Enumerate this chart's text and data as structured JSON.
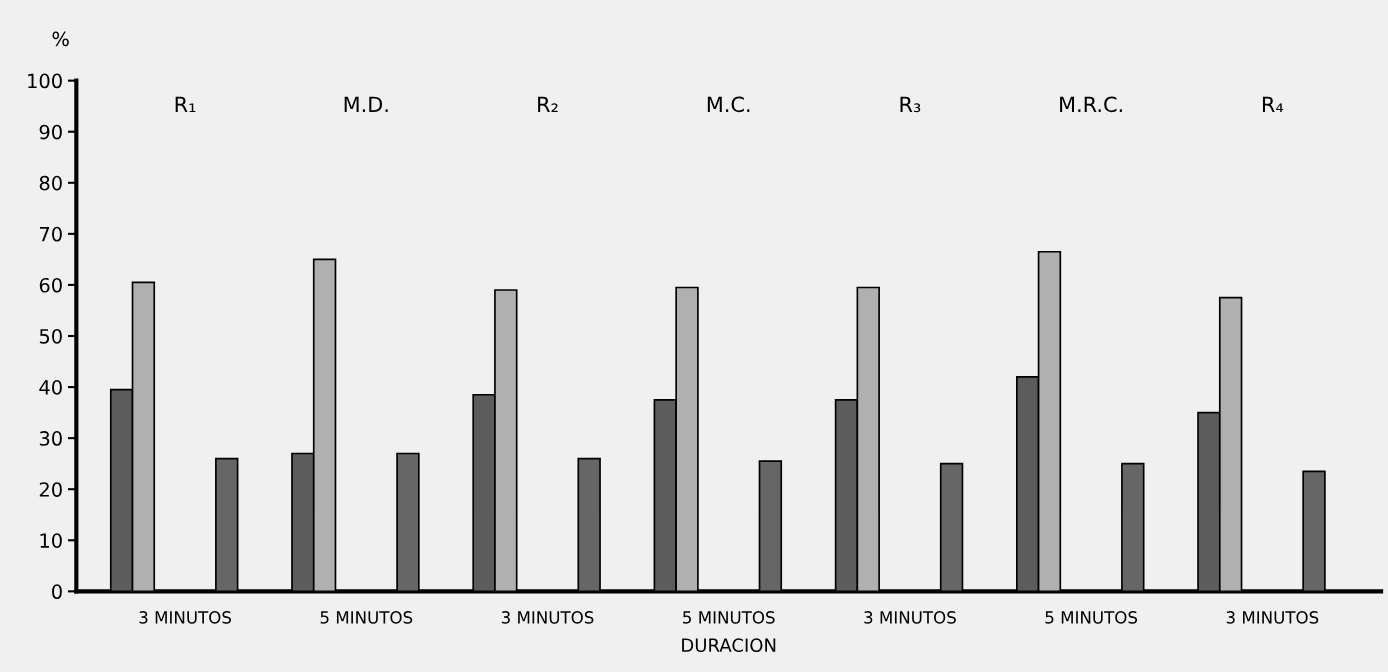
{
  "chart_data": {
    "type": "bar",
    "xlabel": "DURACION",
    "ylabel": "%",
    "categories": [
      "3 MINUTOS",
      "5 MINUTOS",
      "3 MINUTOS",
      "5 MINUTOS",
      "3 MINUTOS",
      "5 MINUTOS",
      "3 MINUTOS"
    ],
    "series": [
      {
        "color": "#5c5c5c",
        "values": [
          39.5,
          27,
          38.5,
          37.5,
          37.5,
          42,
          35
        ]
      },
      {
        "color": "#b0b0b0",
        "values": [
          60.5,
          65,
          59,
          59.5,
          59.5,
          66.5,
          57.5
        ]
      },
      {
        "color": "#666666",
        "values": [
          26,
          27,
          26,
          25.5,
          25,
          25,
          23.5
        ]
      }
    ],
    "annotations": [
      "R₁",
      "M.D.",
      "R₂",
      "M.C.",
      "R₃",
      "M.R.C.",
      "R₄"
    ],
    "ylim": [
      0,
      100
    ],
    "yticks": [
      0,
      10,
      20,
      30,
      40,
      50,
      60,
      70,
      80,
      90,
      100
    ],
    "grid": false,
    "legend": false
  }
}
